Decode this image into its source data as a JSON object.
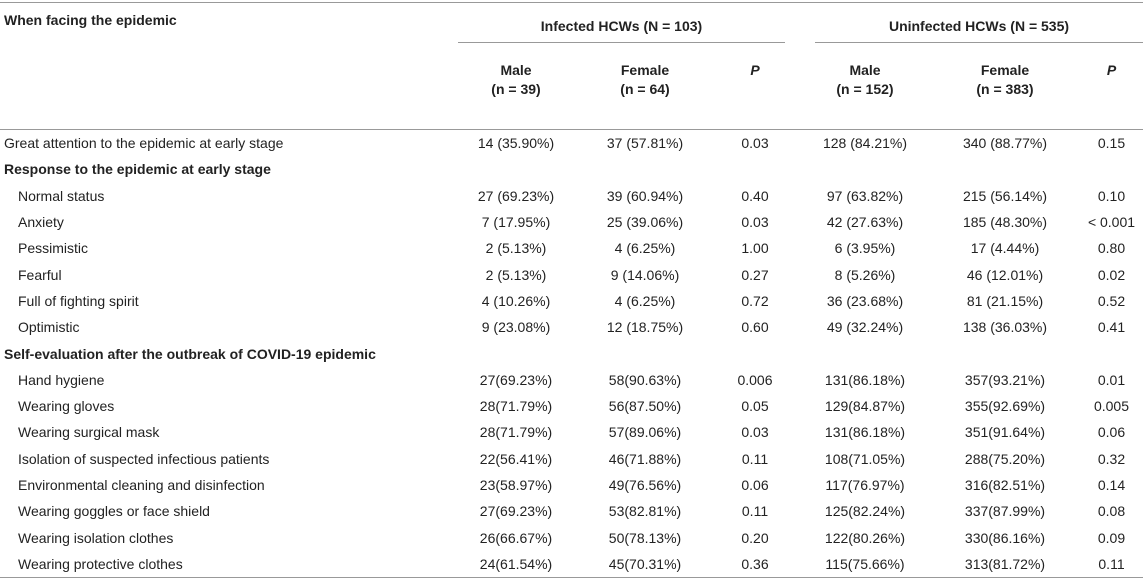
{
  "table": {
    "header": {
      "label": "When facing the epidemic",
      "groups": [
        "Infected HCWs (N = 103)",
        "Uninfected HCWs (N = 535)"
      ],
      "columns": [
        {
          "label": "Male",
          "n": "(n = 39)"
        },
        {
          "label": "Female",
          "n": "(n = 64)"
        },
        {
          "label": "P"
        },
        {
          "label": "Male",
          "n": "(n = 152)"
        },
        {
          "label": "Female",
          "n": "(n = 383)"
        },
        {
          "label": "P"
        }
      ]
    },
    "first_row": {
      "label": "Great attention to the epidemic at early stage",
      "values": [
        "14 (35.90%)",
        "37 (57.81%)",
        "0.03",
        "128 (84.21%)",
        "340 (88.77%)",
        "0.15"
      ]
    },
    "sections": [
      {
        "title": "Response to the epidemic at early stage",
        "rows": [
          {
            "label": "Normal status",
            "values": [
              "27 (69.23%)",
              "39 (60.94%)",
              "0.40",
              "97 (63.82%)",
              "215 (56.14%)",
              "0.10"
            ]
          },
          {
            "label": "Anxiety",
            "values": [
              "7 (17.95%)",
              "25 (39.06%)",
              "0.03",
              "42 (27.63%)",
              "185 (48.30%)",
              "< 0.001"
            ]
          },
          {
            "label": "Pessimistic",
            "values": [
              "2 (5.13%)",
              "4 (6.25%)",
              "1.00",
              "6 (3.95%)",
              "17 (4.44%)",
              "0.80"
            ]
          },
          {
            "label": "Fearful",
            "values": [
              "2 (5.13%)",
              "9 (14.06%)",
              "0.27",
              "8 (5.26%)",
              "46 (12.01%)",
              "0.02"
            ]
          },
          {
            "label": "Full of fighting spirit",
            "values": [
              "4 (10.26%)",
              "4 (6.25%)",
              "0.72",
              "36 (23.68%)",
              "81 (21.15%)",
              "0.52"
            ]
          },
          {
            "label": "Optimistic",
            "values": [
              "9 (23.08%)",
              "12 (18.75%)",
              "0.60",
              "49 (32.24%)",
              "138 (36.03%)",
              "0.41"
            ]
          }
        ]
      },
      {
        "title": "Self-evaluation after the outbreak of COVID-19 epidemic",
        "rows": [
          {
            "label": "Hand hygiene",
            "values": [
              "27(69.23%)",
              "58(90.63%)",
              "0.006",
              "131(86.18%)",
              "357(93.21%)",
              "0.01"
            ]
          },
          {
            "label": "Wearing gloves",
            "values": [
              "28(71.79%)",
              "56(87.50%)",
              "0.05",
              "129(84.87%)",
              "355(92.69%)",
              "0.005"
            ]
          },
          {
            "label": "Wearing surgical mask",
            "values": [
              "28(71.79%)",
              "57(89.06%)",
              "0.03",
              "131(86.18%)",
              "351(91.64%)",
              "0.06"
            ]
          },
          {
            "label": "Isolation of suspected infectious patients",
            "values": [
              "22(56.41%)",
              "46(71.88%)",
              "0.11",
              "108(71.05%)",
              "288(75.20%)",
              "0.32"
            ]
          },
          {
            "label": "Environmental cleaning and disinfection",
            "values": [
              "23(58.97%)",
              "49(76.56%)",
              "0.06",
              "117(76.97%)",
              "316(82.51%)",
              "0.14"
            ]
          },
          {
            "label": "Wearing goggles or face shield",
            "values": [
              "27(69.23%)",
              "53(82.81%)",
              "0.11",
              "125(82.24%)",
              "337(87.99%)",
              "0.08"
            ]
          },
          {
            "label": "Wearing isolation clothes",
            "values": [
              "26(66.67%)",
              "50(78.13%)",
              "0.20",
              "122(80.26%)",
              "330(86.16%)",
              "0.09"
            ]
          },
          {
            "label": "Wearing protective clothes",
            "values": [
              "24(61.54%)",
              "45(70.31%)",
              "0.36",
              "115(75.66%)",
              "313(81.72%)",
              "0.11"
            ]
          }
        ]
      }
    ]
  }
}
